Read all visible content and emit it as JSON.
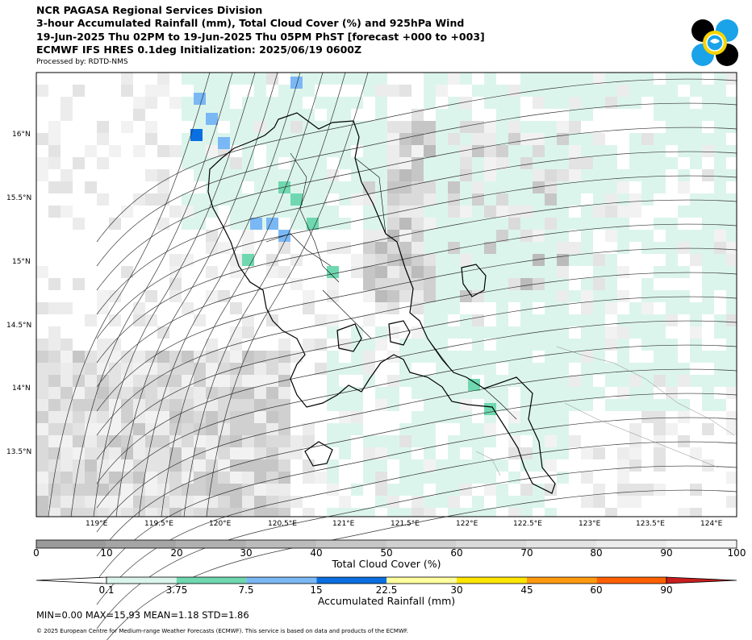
{
  "header": {
    "line1": "NCR PAGASA Regional Services Division",
    "line2": "3-hour Accumulated Rainfall (mm), Total Cloud Cover (%) and 925hPa Wind",
    "line3": "19-Jun-2025 Thu 02PM to 19-Jun-2025 Thu 05PM PhST [forecast +000 to +003]",
    "line4": "ECMWF IFS HRES 0.1deg Initialization: 2025/06/19 0600Z",
    "processed_by": "Processed by: RDTD-NMS"
  },
  "map": {
    "lon_ticks": [
      "119°E",
      "119.5°E",
      "120°E",
      "120.5°E",
      "121°E",
      "121.5°E",
      "122°E",
      "122.5°E",
      "123°E",
      "123.5°E",
      "124°E"
    ],
    "lat_ticks": [
      "16°N",
      "15.5°N",
      "15°N",
      "14.5°N",
      "14°N",
      "13.5°N"
    ],
    "colors": {
      "land_outline": "#000000",
      "streamline": "#333333",
      "rain_light": "#dcf5ec",
      "rain_3_75": "#6fd8b0",
      "rain_7_5": "#7ab8f5",
      "rain_15": "#0a6fe0"
    }
  },
  "cloud_colorbar": {
    "ticks": [
      "0",
      "10",
      "20",
      "30",
      "40",
      "50",
      "60",
      "70",
      "80",
      "90",
      "100"
    ],
    "label": "Total Cloud Cover (%)",
    "colors": [
      "#9a9a9a",
      "#a5a5a5",
      "#b0b0b0",
      "#bbbbbb",
      "#c6c6c6",
      "#d0d0d0",
      "#dadada",
      "#e3e3e3",
      "#ececec",
      "#f5f5f5"
    ]
  },
  "rain_colorbar": {
    "ticks": [
      "0.1",
      "3.75",
      "7.5",
      "15",
      "22.5",
      "30",
      "45",
      "60",
      "90"
    ],
    "label": "Accumulated Rainfall (mm)",
    "colors": [
      "#ffffff",
      "#dcf5ec",
      "#6fd8b0",
      "#7ab8f5",
      "#0a6fe0",
      "#ffff9e",
      "#ffe600",
      "#ff9a10",
      "#ff6000",
      "#c81e1e"
    ]
  },
  "stats": "MIN=0.00   MAX=15.93   MEAN=1.18   STD=1.86",
  "copyright": "© 2025 European Centre for Medium-range Weather Forecasts (ECMWF). This service is based on data and products of the ECMWF."
}
